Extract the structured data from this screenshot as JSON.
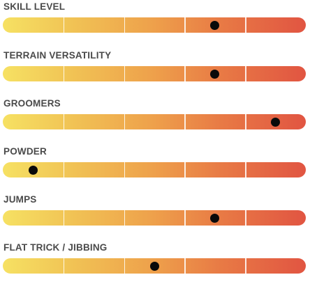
{
  "ratings": [
    {
      "label": "SKILL LEVEL",
      "value": 0.7
    },
    {
      "label": "TERRAIN VERSATILITY",
      "value": 0.7
    },
    {
      "label": "GROOMERS",
      "value": 0.9
    },
    {
      "label": "POWDER",
      "value": 0.1
    },
    {
      "label": "JUMPS",
      "value": 0.7
    },
    {
      "label": "FLAT TRICK / JIBBING",
      "value": 0.5
    }
  ],
  "scale": {
    "segments": 5
  },
  "colors": {
    "label": "#4a4a4a",
    "gradient_start": "#f6e163",
    "gradient_end": "#e15542",
    "dot": "#0a0a0a"
  }
}
